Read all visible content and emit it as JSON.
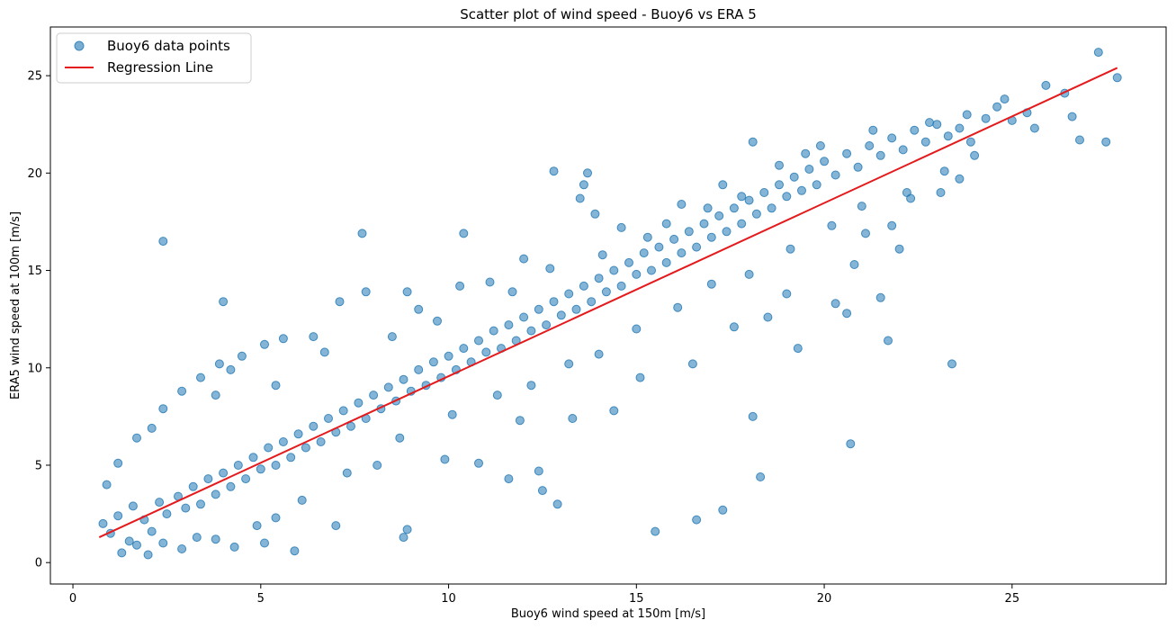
{
  "chart_data": {
    "type": "scatter",
    "title": "Scatter plot of wind speed - Buoy6 vs ERA 5",
    "xlabel": "Buoy6 wind speed at 150m [m/s]",
    "ylabel": "ERA5 wind speed at 100m [m/s]",
    "xlim": [
      -0.6,
      29.1
    ],
    "ylim": [
      -1.1,
      27.5
    ],
    "xticks": [
      0,
      5,
      10,
      15,
      20,
      25
    ],
    "yticks": [
      0,
      5,
      10,
      15,
      20,
      25
    ],
    "grid": false,
    "legend_position": "top-left",
    "colors": {
      "points": "#1f77b4",
      "regression": "#e41a1c"
    },
    "legend": [
      {
        "label": "Buoy6 data points",
        "marker": "circle"
      },
      {
        "label": "Regression Line",
        "marker": "line"
      }
    ],
    "regression": {
      "x": [
        0.7,
        27.8
      ],
      "y": [
        1.3,
        25.4
      ]
    },
    "series": [
      {
        "name": "Buoy6 data points",
        "points": [
          [
            0.8,
            2.0
          ],
          [
            1.0,
            1.5
          ],
          [
            1.2,
            2.4
          ],
          [
            1.5,
            1.1
          ],
          [
            1.6,
            2.9
          ],
          [
            1.9,
            2.2
          ],
          [
            2.1,
            1.6
          ],
          [
            2.3,
            3.1
          ],
          [
            2.5,
            2.5
          ],
          [
            2.8,
            3.4
          ],
          [
            3.0,
            2.8
          ],
          [
            3.2,
            3.9
          ],
          [
            3.4,
            3.0
          ],
          [
            3.6,
            4.3
          ],
          [
            3.8,
            3.5
          ],
          [
            4.0,
            4.6
          ],
          [
            4.2,
            3.9
          ],
          [
            4.4,
            5.0
          ],
          [
            4.6,
            4.3
          ],
          [
            4.8,
            5.4
          ],
          [
            5.0,
            4.8
          ],
          [
            5.2,
            5.9
          ],
          [
            5.4,
            5.0
          ],
          [
            5.6,
            6.2
          ],
          [
            5.8,
            5.4
          ],
          [
            6.0,
            6.6
          ],
          [
            6.2,
            5.9
          ],
          [
            6.4,
            7.0
          ],
          [
            6.6,
            6.2
          ],
          [
            6.8,
            7.4
          ],
          [
            7.0,
            6.7
          ],
          [
            7.2,
            7.8
          ],
          [
            7.4,
            7.0
          ],
          [
            7.6,
            8.2
          ],
          [
            7.8,
            7.4
          ],
          [
            8.0,
            8.6
          ],
          [
            8.2,
            7.9
          ],
          [
            8.4,
            9.0
          ],
          [
            8.6,
            8.3
          ],
          [
            8.8,
            9.4
          ],
          [
            9.0,
            8.8
          ],
          [
            9.2,
            9.9
          ],
          [
            9.4,
            9.1
          ],
          [
            9.6,
            10.3
          ],
          [
            9.8,
            9.5
          ],
          [
            10.0,
            10.6
          ],
          [
            10.2,
            9.9
          ],
          [
            10.4,
            11.0
          ],
          [
            10.6,
            10.3
          ],
          [
            10.8,
            11.4
          ],
          [
            11.0,
            10.8
          ],
          [
            11.2,
            11.9
          ],
          [
            11.4,
            11.0
          ],
          [
            11.6,
            12.2
          ],
          [
            11.8,
            11.4
          ],
          [
            12.0,
            12.6
          ],
          [
            12.2,
            11.9
          ],
          [
            12.4,
            13.0
          ],
          [
            12.6,
            12.2
          ],
          [
            12.8,
            13.4
          ],
          [
            13.0,
            12.7
          ],
          [
            13.2,
            13.8
          ],
          [
            13.4,
            13.0
          ],
          [
            13.6,
            14.2
          ],
          [
            13.8,
            13.4
          ],
          [
            14.0,
            14.6
          ],
          [
            14.2,
            13.9
          ],
          [
            14.4,
            15.0
          ],
          [
            14.6,
            14.2
          ],
          [
            14.8,
            15.4
          ],
          [
            15.0,
            14.8
          ],
          [
            15.2,
            15.9
          ],
          [
            15.4,
            15.0
          ],
          [
            15.6,
            16.2
          ],
          [
            15.8,
            15.4
          ],
          [
            16.0,
            16.6
          ],
          [
            16.2,
            15.9
          ],
          [
            16.4,
            17.0
          ],
          [
            16.6,
            16.2
          ],
          [
            16.8,
            17.4
          ],
          [
            17.0,
            16.7
          ],
          [
            17.2,
            17.8
          ],
          [
            17.4,
            17.0
          ],
          [
            17.6,
            18.2
          ],
          [
            17.8,
            17.4
          ],
          [
            18.0,
            18.6
          ],
          [
            18.2,
            17.9
          ],
          [
            18.4,
            19.0
          ],
          [
            18.6,
            18.2
          ],
          [
            18.8,
            19.4
          ],
          [
            19.0,
            18.8
          ],
          [
            19.2,
            19.8
          ],
          [
            19.4,
            19.1
          ],
          [
            19.6,
            20.2
          ],
          [
            19.8,
            19.4
          ],
          [
            20.0,
            20.6
          ],
          [
            20.3,
            19.9
          ],
          [
            20.6,
            21.0
          ],
          [
            20.9,
            20.3
          ],
          [
            21.2,
            21.4
          ],
          [
            21.5,
            20.9
          ],
          [
            21.8,
            21.8
          ],
          [
            22.1,
            21.2
          ],
          [
            22.4,
            22.2
          ],
          [
            22.7,
            21.6
          ],
          [
            23.0,
            22.5
          ],
          [
            23.3,
            21.9
          ],
          [
            23.6,
            22.3
          ],
          [
            23.9,
            21.6
          ],
          [
            24.3,
            22.8
          ],
          [
            24.6,
            23.4
          ],
          [
            25.0,
            22.7
          ],
          [
            25.4,
            23.1
          ],
          [
            25.9,
            24.5
          ],
          [
            26.4,
            24.1
          ],
          [
            26.8,
            21.7
          ],
          [
            27.3,
            26.2
          ],
          [
            27.8,
            24.9
          ],
          [
            27.5,
            21.6
          ],
          [
            26.6,
            22.9
          ],
          [
            1.3,
            0.5
          ],
          [
            1.7,
            0.9
          ],
          [
            2.0,
            0.4
          ],
          [
            2.4,
            1.0
          ],
          [
            2.9,
            0.7
          ],
          [
            3.3,
            1.3
          ],
          [
            3.8,
            1.2
          ],
          [
            4.3,
            0.8
          ],
          [
            4.9,
            1.9
          ],
          [
            5.4,
            2.3
          ],
          [
            0.9,
            4.0
          ],
          [
            1.2,
            5.1
          ],
          [
            1.7,
            6.4
          ],
          [
            2.1,
            6.9
          ],
          [
            2.4,
            7.9
          ],
          [
            2.9,
            8.8
          ],
          [
            3.4,
            9.5
          ],
          [
            3.9,
            10.2
          ],
          [
            4.5,
            10.6
          ],
          [
            5.1,
            11.2
          ],
          [
            2.4,
            16.5
          ],
          [
            4.0,
            13.4
          ],
          [
            7.8,
            13.9
          ],
          [
            7.7,
            16.9
          ],
          [
            10.4,
            16.9
          ],
          [
            12.8,
            20.1
          ],
          [
            13.7,
            20.0
          ],
          [
            13.6,
            19.4
          ],
          [
            13.5,
            18.7
          ],
          [
            8.9,
            13.9
          ],
          [
            12.9,
            3.0
          ],
          [
            12.5,
            3.7
          ],
          [
            8.8,
            1.3
          ],
          [
            8.9,
            1.7
          ],
          [
            7.0,
            1.9
          ],
          [
            5.9,
            0.6
          ],
          [
            5.1,
            1.0
          ],
          [
            15.5,
            1.6
          ],
          [
            16.6,
            2.2
          ],
          [
            17.3,
            2.7
          ],
          [
            18.3,
            4.4
          ],
          [
            18.1,
            7.5
          ],
          [
            20.7,
            6.1
          ],
          [
            23.4,
            10.2
          ],
          [
            19.3,
            11.0
          ],
          [
            21.7,
            11.4
          ],
          [
            20.3,
            13.3
          ],
          [
            20.6,
            12.8
          ],
          [
            21.5,
            13.6
          ],
          [
            20.8,
            15.3
          ],
          [
            22.0,
            16.1
          ],
          [
            9.9,
            5.3
          ],
          [
            10.8,
            5.1
          ],
          [
            11.6,
            4.3
          ],
          [
            12.4,
            4.7
          ],
          [
            11.9,
            7.3
          ],
          [
            13.3,
            7.4
          ],
          [
            14.4,
            7.8
          ],
          [
            15.1,
            9.5
          ],
          [
            16.5,
            10.2
          ],
          [
            17.6,
            12.1
          ],
          [
            18.5,
            12.6
          ],
          [
            19.0,
            13.8
          ],
          [
            21.1,
            16.9
          ],
          [
            21.8,
            17.3
          ],
          [
            22.3,
            18.7
          ],
          [
            23.1,
            19.0
          ],
          [
            23.6,
            19.7
          ],
          [
            19.5,
            21.0
          ],
          [
            18.1,
            21.6
          ],
          [
            17.3,
            19.4
          ],
          [
            16.2,
            18.4
          ],
          [
            15.8,
            17.4
          ],
          [
            14.6,
            17.2
          ],
          [
            13.9,
            17.9
          ],
          [
            12.0,
            15.6
          ],
          [
            11.1,
            14.4
          ],
          [
            10.3,
            14.2
          ],
          [
            9.2,
            13.0
          ],
          [
            7.1,
            13.4
          ],
          [
            5.6,
            11.5
          ],
          [
            6.4,
            11.6
          ],
          [
            3.8,
            8.6
          ],
          [
            4.2,
            9.9
          ],
          [
            5.4,
            9.1
          ],
          [
            6.7,
            10.8
          ],
          [
            8.5,
            11.6
          ],
          [
            9.7,
            12.4
          ],
          [
            11.7,
            13.9
          ],
          [
            12.7,
            15.1
          ],
          [
            14.1,
            15.8
          ],
          [
            15.3,
            16.7
          ],
          [
            16.9,
            18.2
          ],
          [
            17.8,
            18.8
          ],
          [
            18.8,
            20.4
          ],
          [
            19.9,
            21.4
          ],
          [
            21.3,
            22.2
          ],
          [
            22.8,
            22.6
          ],
          [
            23.8,
            23.0
          ],
          [
            24.8,
            23.8
          ],
          [
            6.1,
            3.2
          ],
          [
            7.3,
            4.6
          ],
          [
            8.1,
            5.0
          ],
          [
            8.7,
            6.4
          ],
          [
            10.1,
            7.6
          ],
          [
            11.3,
            8.6
          ],
          [
            12.2,
            9.1
          ],
          [
            13.2,
            10.2
          ],
          [
            14.0,
            10.7
          ],
          [
            15.0,
            12.0
          ],
          [
            16.1,
            13.1
          ],
          [
            17.0,
            14.3
          ],
          [
            18.0,
            14.8
          ],
          [
            19.1,
            16.1
          ],
          [
            20.2,
            17.3
          ],
          [
            21.0,
            18.3
          ],
          [
            22.2,
            19.0
          ],
          [
            23.2,
            20.1
          ],
          [
            24.0,
            20.9
          ],
          [
            25.6,
            22.3
          ]
        ]
      }
    ]
  }
}
